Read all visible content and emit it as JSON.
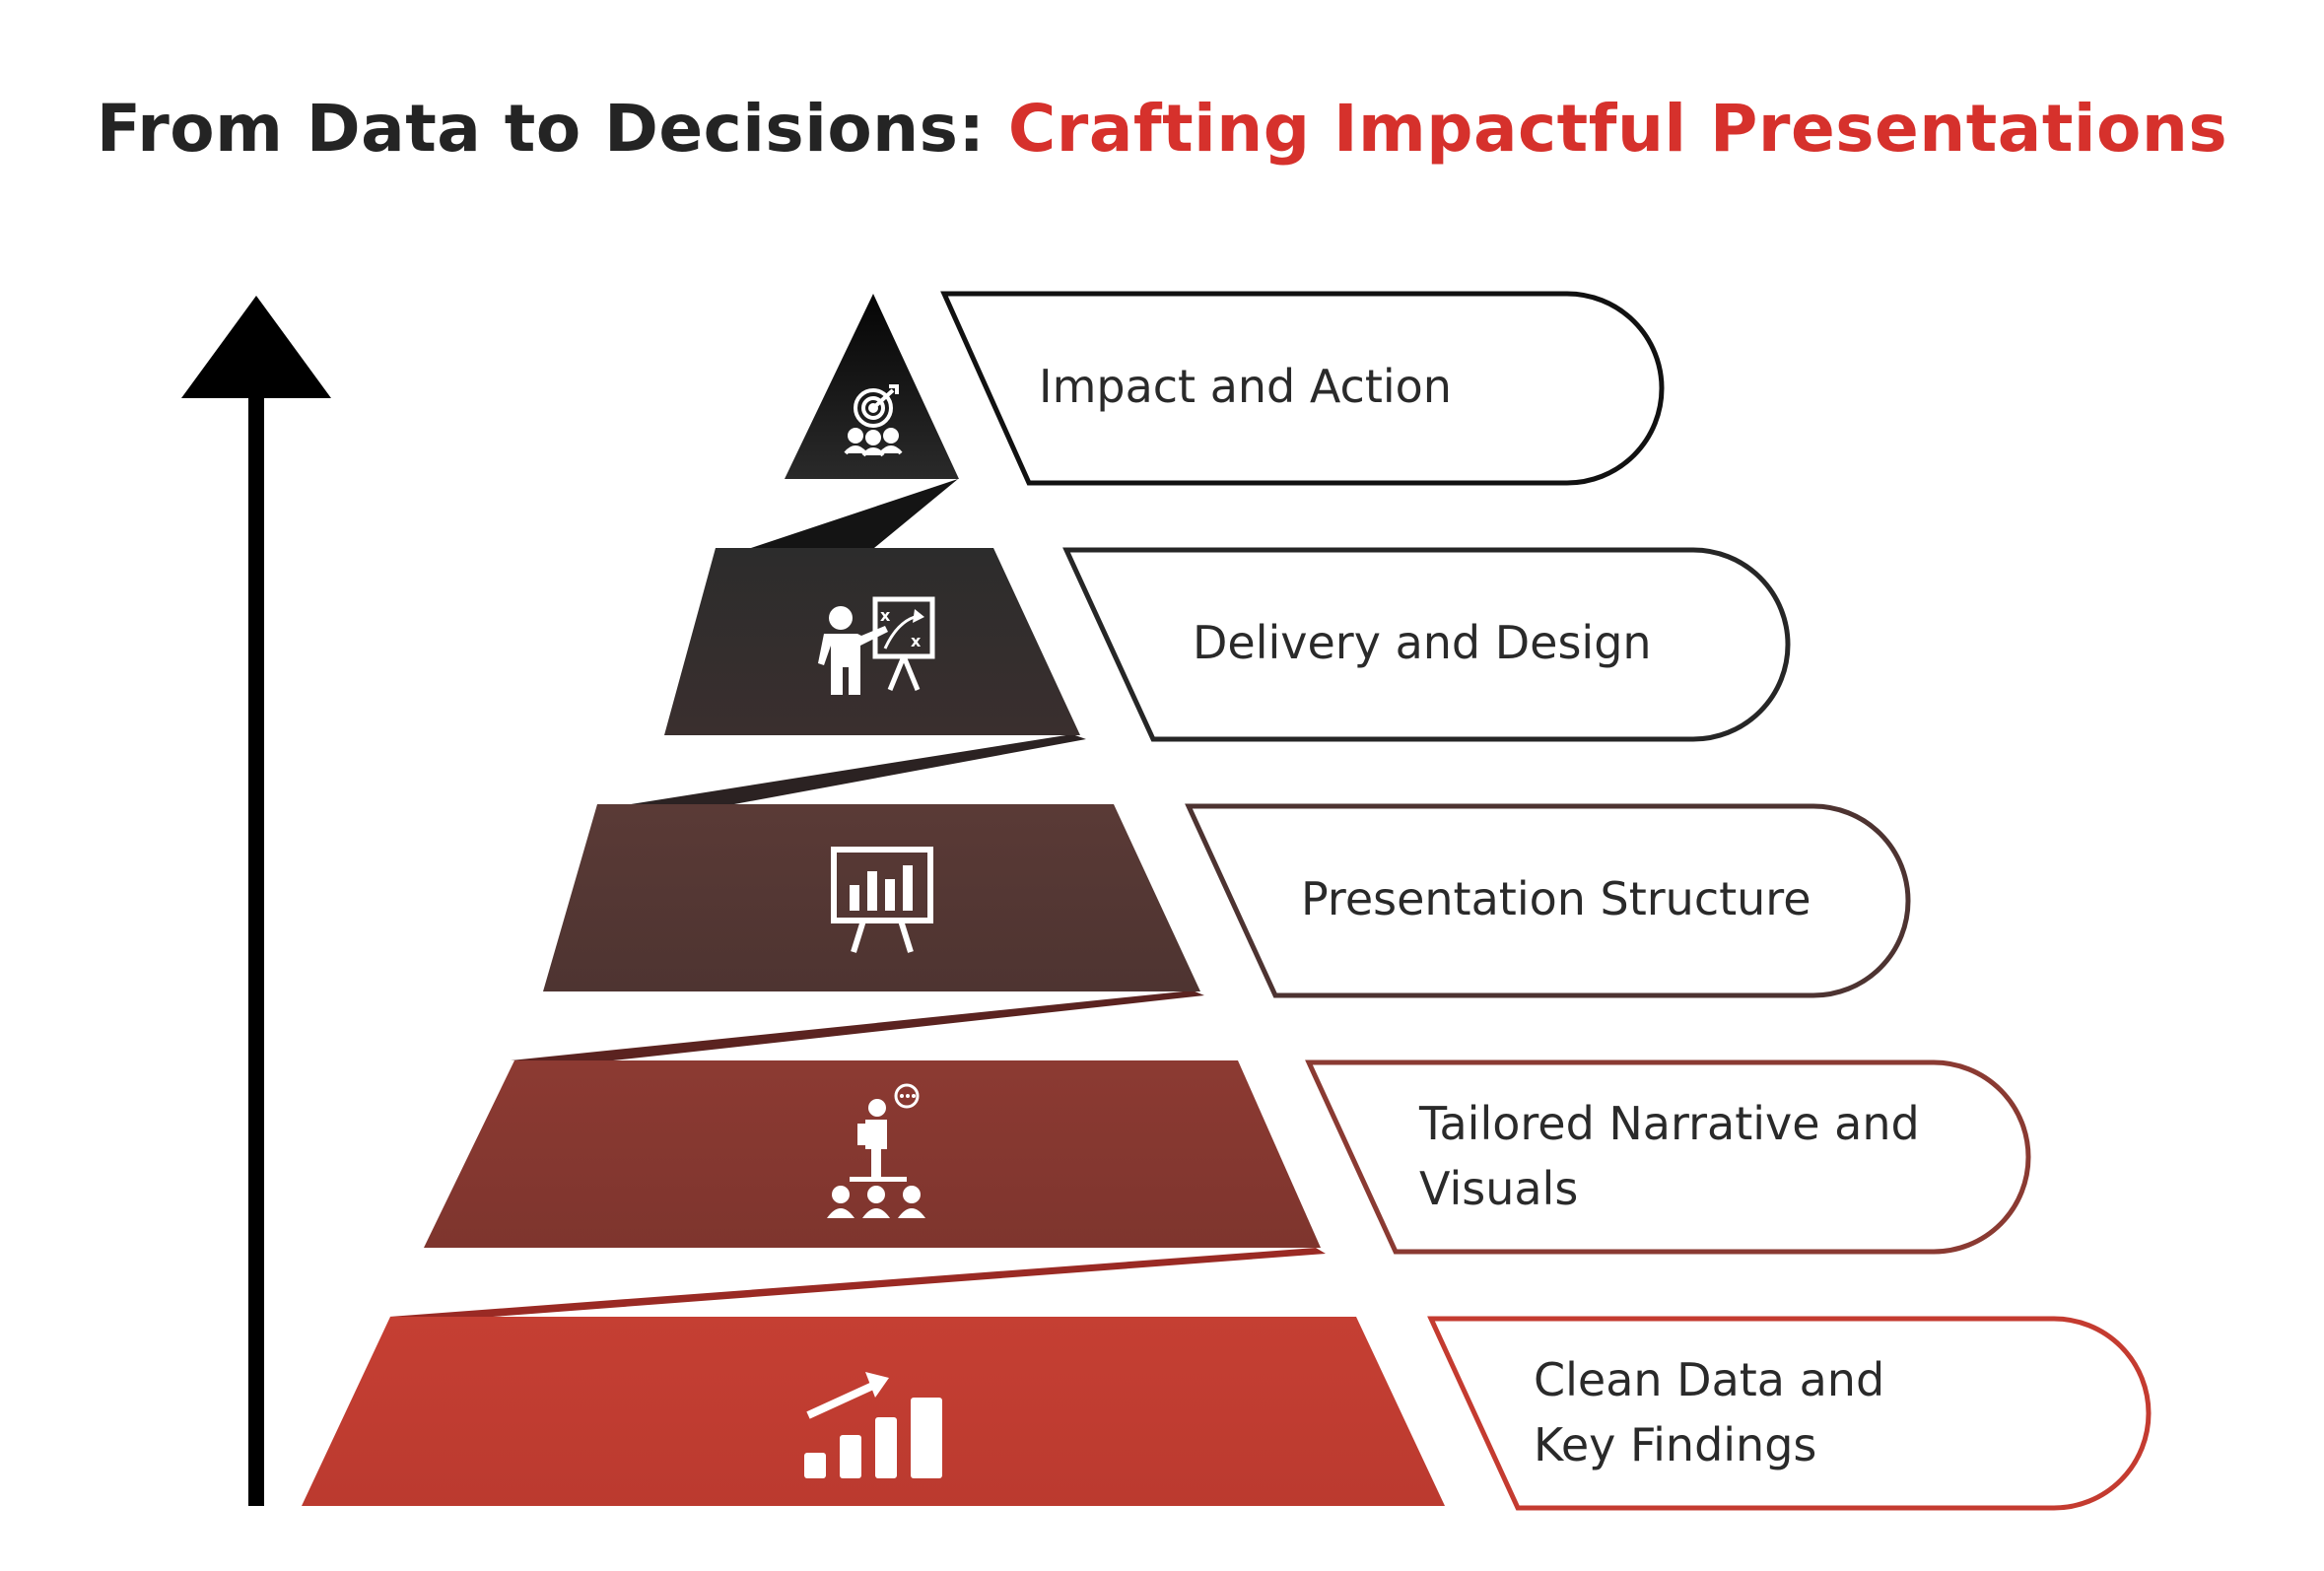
{
  "title": {
    "part1": "From Data to Decisions:",
    "part2": "Crafting Impactful Presentations"
  },
  "colors": {
    "title_dark": "#242424",
    "title_red": "#d6312c",
    "level_1": "#000000",
    "level_2": "#2f2f2f",
    "level_3": "#553734",
    "level_4": "#87372f",
    "level_5": "#c03c30"
  },
  "levels": [
    {
      "label_lines": [
        "Impact and Action"
      ],
      "icon": "target-team-icon"
    },
    {
      "label_lines": [
        "Delivery and Design"
      ],
      "icon": "presenter-strategy-board-icon"
    },
    {
      "label_lines": [
        "Presentation Structure"
      ],
      "icon": "bar-chart-easel-icon"
    },
    {
      "label_lines": [
        "Tailored Narrative and",
        "Visuals"
      ],
      "icon": "speaker-audience-icon"
    },
    {
      "label_lines": [
        "Clean Data and",
        "Key Findings"
      ],
      "icon": "growth-bar-chart-icon"
    }
  ]
}
